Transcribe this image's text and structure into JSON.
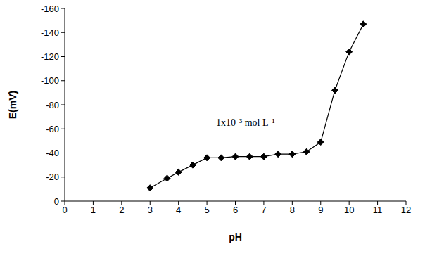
{
  "chart_data": {
    "type": "line",
    "x_label": "pH",
    "y_label": "E(mV)",
    "annotation": "1x10⁻³ mol L⁻¹",
    "x": [
      3,
      3.6,
      4,
      4.5,
      5,
      5.5,
      6,
      6.5,
      7,
      7.5,
      8,
      8.5,
      9,
      9.5,
      10,
      10.5
    ],
    "values": [
      -11,
      -19,
      -24,
      -30,
      -36,
      -36,
      -37,
      -37,
      -37,
      -39,
      -39,
      -41,
      -49,
      -92,
      -124,
      -147
    ],
    "color": "#000000",
    "marker": "diamond",
    "xlim": [
      0,
      12
    ],
    "xticks": [
      0,
      1,
      2,
      3,
      4,
      5,
      6,
      7,
      8,
      9,
      10,
      11,
      12
    ],
    "ylim": [
      0,
      -160
    ],
    "yticks": [
      0,
      -20,
      -40,
      -60,
      -80,
      -100,
      -120,
      -140,
      -160
    ],
    "grid": false
  }
}
